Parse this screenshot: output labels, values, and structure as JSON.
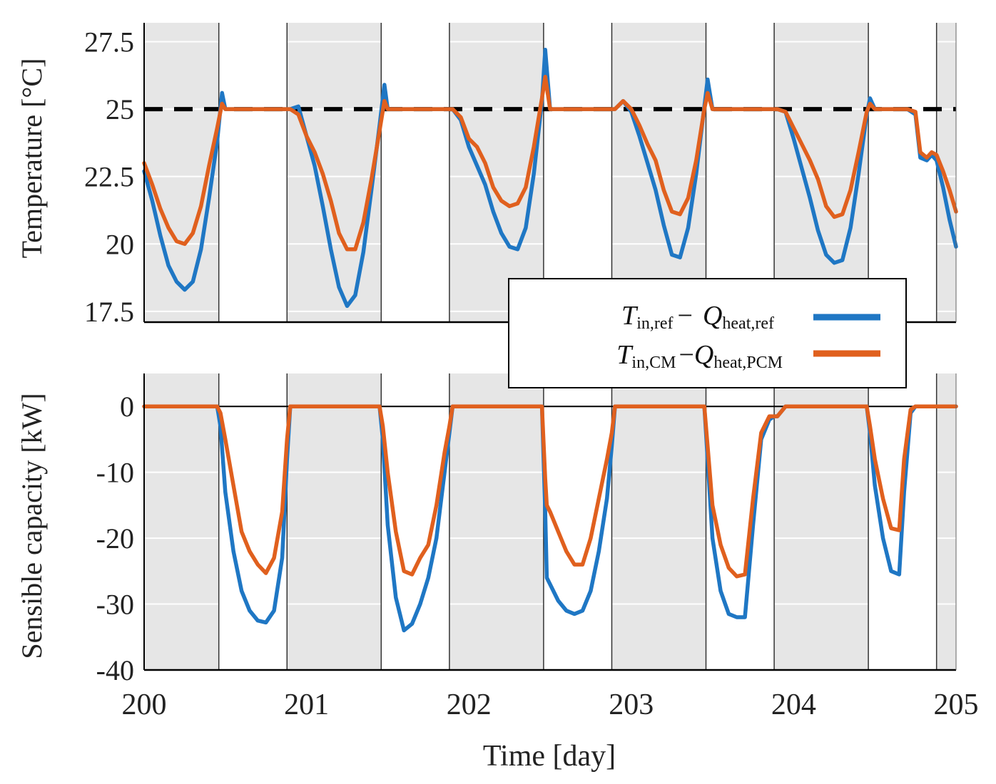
{
  "colors": {
    "ref": "#1f77c4",
    "pcm": "#e0601e",
    "setpoint": "#000000",
    "shade": "#e6e6e6",
    "grid": "#ffffff"
  },
  "xaxis": {
    "label": "Time [day]",
    "ticks": [
      200,
      201,
      202,
      203,
      204,
      205
    ],
    "tick_labels": [
      "200",
      "201",
      "202",
      "203",
      "204",
      "205"
    ]
  },
  "legend": {
    "entries": [
      {
        "T": "T",
        "T_sub": "in,ref",
        "dash": "−",
        "Q": "Q",
        "Q_sub": "heat,ref",
        "color_key": "ref"
      },
      {
        "T": "T",
        "T_sub": "in,CM",
        "dash": "−",
        "Q": "Q",
        "Q_sub": "heat,PCM",
        "color_key": "pcm"
      }
    ]
  },
  "chart_data": [
    {
      "type": "line",
      "ylabel": "Temperature [°C]",
      "ylim": [
        17.1,
        28.2
      ],
      "xlim": [
        200,
        205
      ],
      "yticks": [
        17.5,
        20,
        22.5,
        25,
        27.5
      ],
      "ytick_labels": [
        "17.5",
        "20",
        "22.5",
        "25",
        "27.5"
      ],
      "grid": true,
      "setpoint": 25,
      "shaded_intervals": [
        [
          200,
          200.46
        ],
        [
          200.88,
          201.46
        ],
        [
          201.88,
          202.46
        ],
        [
          202.88,
          203.46
        ],
        [
          203.88,
          204.46
        ],
        [
          204.88,
          205
        ]
      ],
      "day_lines": [
        200.46,
        200.88,
        201.46,
        201.88,
        202.46,
        202.88,
        203.46,
        203.88,
        204.46,
        204.88
      ],
      "series": [
        {
          "color_key": "ref",
          "x": [
            200,
            200.05,
            200.1,
            200.15,
            200.2,
            200.25,
            200.3,
            200.35,
            200.4,
            200.45,
            200.48,
            200.5,
            200.6,
            200.7,
            200.8,
            200.9,
            200.95,
            201.0,
            201.05,
            201.1,
            201.15,
            201.2,
            201.25,
            201.3,
            201.35,
            201.4,
            201.45,
            201.48,
            201.5,
            201.6,
            201.7,
            201.8,
            201.9,
            201.95,
            202.0,
            202.05,
            202.1,
            202.15,
            202.2,
            202.25,
            202.3,
            202.35,
            202.4,
            202.45,
            202.47,
            202.5,
            202.6,
            202.7,
            202.8,
            202.9,
            202.95,
            203.0,
            203.05,
            203.1,
            203.15,
            203.2,
            203.25,
            203.3,
            203.35,
            203.4,
            203.45,
            203.47,
            203.5,
            203.6,
            203.7,
            203.8,
            203.9,
            203.95,
            204.0,
            204.05,
            204.1,
            204.15,
            204.2,
            204.25,
            204.3,
            204.35,
            204.4,
            204.45,
            204.47,
            204.5,
            204.6,
            204.7,
            204.75,
            204.78,
            204.82,
            204.85,
            204.88,
            204.92,
            204.96,
            205.0
          ],
          "y": [
            22.7,
            21.6,
            20.3,
            19.2,
            18.6,
            18.3,
            18.6,
            19.8,
            21.7,
            23.8,
            25.6,
            25.0,
            25.0,
            25.0,
            25.0,
            25.0,
            25.1,
            24.0,
            22.9,
            21.4,
            19.8,
            18.4,
            17.7,
            18.1,
            19.7,
            22.0,
            24.4,
            25.9,
            25.0,
            25.0,
            25.0,
            25.0,
            25.0,
            24.6,
            23.6,
            22.9,
            22.2,
            21.2,
            20.4,
            19.9,
            19.8,
            20.6,
            22.6,
            25.3,
            27.2,
            25.0,
            25.0,
            25.0,
            25.0,
            25.0,
            25.3,
            24.9,
            24.0,
            23.0,
            22.0,
            20.7,
            19.6,
            19.5,
            20.6,
            22.6,
            25.1,
            26.1,
            25.0,
            25.0,
            25.0,
            25.0,
            25.0,
            24.9,
            23.9,
            22.8,
            21.7,
            20.5,
            19.6,
            19.3,
            19.4,
            20.6,
            22.6,
            24.8,
            25.4,
            25.0,
            25.0,
            25.0,
            24.8,
            23.2,
            23.1,
            23.3,
            23.1,
            22.1,
            20.9,
            19.9
          ]
        },
        {
          "color_key": "pcm",
          "x": [
            200,
            200.05,
            200.1,
            200.15,
            200.2,
            200.25,
            200.3,
            200.35,
            200.4,
            200.45,
            200.48,
            200.5,
            200.6,
            200.7,
            200.8,
            200.9,
            200.95,
            201.0,
            201.05,
            201.1,
            201.15,
            201.2,
            201.25,
            201.3,
            201.35,
            201.4,
            201.45,
            201.48,
            201.5,
            201.6,
            201.7,
            201.8,
            201.9,
            201.95,
            202.0,
            202.05,
            202.1,
            202.15,
            202.2,
            202.25,
            202.3,
            202.35,
            202.4,
            202.45,
            202.47,
            202.5,
            202.6,
            202.7,
            202.8,
            202.9,
            202.95,
            203.0,
            203.05,
            203.1,
            203.15,
            203.2,
            203.25,
            203.3,
            203.35,
            203.4,
            203.45,
            203.47,
            203.5,
            203.6,
            203.7,
            203.8,
            203.9,
            203.95,
            204.0,
            204.05,
            204.1,
            204.15,
            204.2,
            204.25,
            204.3,
            204.35,
            204.4,
            204.45,
            204.47,
            204.5,
            204.6,
            204.7,
            204.75,
            204.78,
            204.82,
            204.85,
            204.88,
            204.92,
            204.96,
            205.0
          ],
          "y": [
            23.0,
            22.2,
            21.3,
            20.6,
            20.1,
            20.0,
            20.4,
            21.4,
            22.9,
            24.3,
            25.2,
            25.0,
            25.0,
            25.0,
            25.0,
            25.0,
            24.8,
            24.0,
            23.4,
            22.6,
            21.6,
            20.4,
            19.8,
            19.8,
            20.8,
            22.4,
            24.2,
            25.3,
            25.0,
            25.0,
            25.0,
            25.0,
            25.0,
            24.7,
            23.9,
            23.6,
            23.0,
            22.1,
            21.6,
            21.4,
            21.5,
            22.1,
            23.6,
            25.4,
            26.2,
            25.0,
            25.0,
            25.0,
            25.0,
            25.0,
            25.3,
            25.0,
            24.4,
            23.7,
            23.1,
            22.0,
            21.2,
            21.1,
            21.7,
            23.1,
            25.0,
            25.6,
            25.0,
            25.0,
            25.0,
            25.0,
            25.0,
            24.9,
            24.3,
            23.7,
            23.1,
            22.4,
            21.4,
            21.0,
            21.1,
            22.0,
            23.4,
            24.9,
            25.2,
            25.0,
            25.0,
            25.0,
            24.9,
            23.4,
            23.2,
            23.4,
            23.3,
            22.7,
            22.0,
            21.2
          ]
        }
      ]
    },
    {
      "type": "line",
      "ylabel": "Sensible capacity [kW]",
      "ylim": [
        -40,
        5
      ],
      "xlim": [
        200,
        205
      ],
      "yticks": [
        -40,
        -30,
        -20,
        -10,
        0
      ],
      "ytick_labels": [
        "-40",
        "-30",
        "-20",
        "-10",
        "0"
      ],
      "grid": true,
      "zero_line": true,
      "shaded_intervals": [
        [
          200,
          200.46
        ],
        [
          200.88,
          201.46
        ],
        [
          201.88,
          202.46
        ],
        [
          202.88,
          203.46
        ],
        [
          203.88,
          204.46
        ],
        [
          204.88,
          205
        ]
      ],
      "day_lines": [
        200.46,
        200.88,
        201.46,
        201.88,
        202.46,
        202.88,
        203.46,
        203.88,
        204.46,
        204.88
      ],
      "series": [
        {
          "color_key": "ref",
          "x": [
            200,
            200.45,
            200.47,
            200.5,
            200.55,
            200.6,
            200.65,
            200.7,
            200.75,
            200.8,
            200.85,
            200.88,
            200.9,
            201.0,
            201.45,
            201.47,
            201.5,
            201.55,
            201.6,
            201.65,
            201.7,
            201.75,
            201.8,
            201.85,
            201.88,
            201.9,
            202.0,
            202.45,
            202.47,
            202.48,
            202.5,
            202.55,
            202.6,
            202.65,
            202.7,
            202.75,
            202.8,
            202.85,
            202.88,
            202.9,
            203.0,
            203.45,
            203.47,
            203.5,
            203.55,
            203.6,
            203.65,
            203.7,
            203.75,
            203.8,
            203.85,
            203.88,
            203.9,
            203.95,
            204.0,
            204.45,
            204.47,
            204.5,
            204.55,
            204.6,
            204.65,
            204.68,
            204.72,
            204.75,
            205.0
          ],
          "y": [
            0,
            0,
            -3,
            -13,
            -22,
            -28,
            -31,
            -32.5,
            -32.8,
            -31,
            -23,
            -8,
            0,
            0,
            0,
            -5,
            -18,
            -29,
            -34,
            -33,
            -30,
            -26,
            -20,
            -10,
            -4,
            0,
            0,
            0,
            -16,
            -26,
            -27,
            -29.5,
            -31,
            -31.5,
            -31,
            -28,
            -22,
            -14,
            -6,
            0,
            0,
            0,
            -8,
            -20,
            -28,
            -31.5,
            -32,
            -32,
            -18,
            -5,
            -2,
            -1.5,
            -1.5,
            0,
            0,
            0,
            -4,
            -12,
            -20,
            -25,
            -25.5,
            -13,
            -1,
            0,
            0
          ]
        },
        {
          "color_key": "pcm",
          "x": [
            200,
            200.45,
            200.47,
            200.5,
            200.55,
            200.6,
            200.65,
            200.7,
            200.75,
            200.8,
            200.85,
            200.88,
            200.9,
            201.0,
            201.45,
            201.47,
            201.5,
            201.55,
            201.6,
            201.65,
            201.7,
            201.75,
            201.8,
            201.85,
            201.88,
            201.9,
            202.0,
            202.45,
            202.47,
            202.48,
            202.5,
            202.55,
            202.6,
            202.65,
            202.7,
            202.75,
            202.8,
            202.85,
            202.88,
            202.9,
            203.0,
            203.45,
            203.47,
            203.5,
            203.55,
            203.6,
            203.65,
            203.7,
            203.75,
            203.8,
            203.85,
            203.88,
            203.9,
            203.95,
            204.0,
            204.45,
            204.47,
            204.5,
            204.55,
            204.6,
            204.65,
            204.68,
            204.72,
            204.75,
            205.0
          ],
          "y": [
            0,
            0,
            -1,
            -5,
            -12,
            -19,
            -22,
            -24,
            -25.3,
            -23,
            -16,
            -5,
            0,
            0,
            0,
            -3,
            -10,
            -19,
            -25,
            -25.5,
            -23,
            -21,
            -15,
            -7,
            -3,
            0,
            0,
            0,
            -11,
            -15,
            -16,
            -19,
            -22,
            -24,
            -24,
            -20,
            -14,
            -8,
            -4,
            0,
            0,
            0,
            -6,
            -15,
            -21,
            -24.5,
            -25.8,
            -25.5,
            -14,
            -4,
            -1.5,
            -1.5,
            -1.5,
            0,
            0,
            0,
            -3,
            -8,
            -14,
            -18.5,
            -18.8,
            -8,
            -0.5,
            0,
            0
          ]
        }
      ]
    }
  ]
}
